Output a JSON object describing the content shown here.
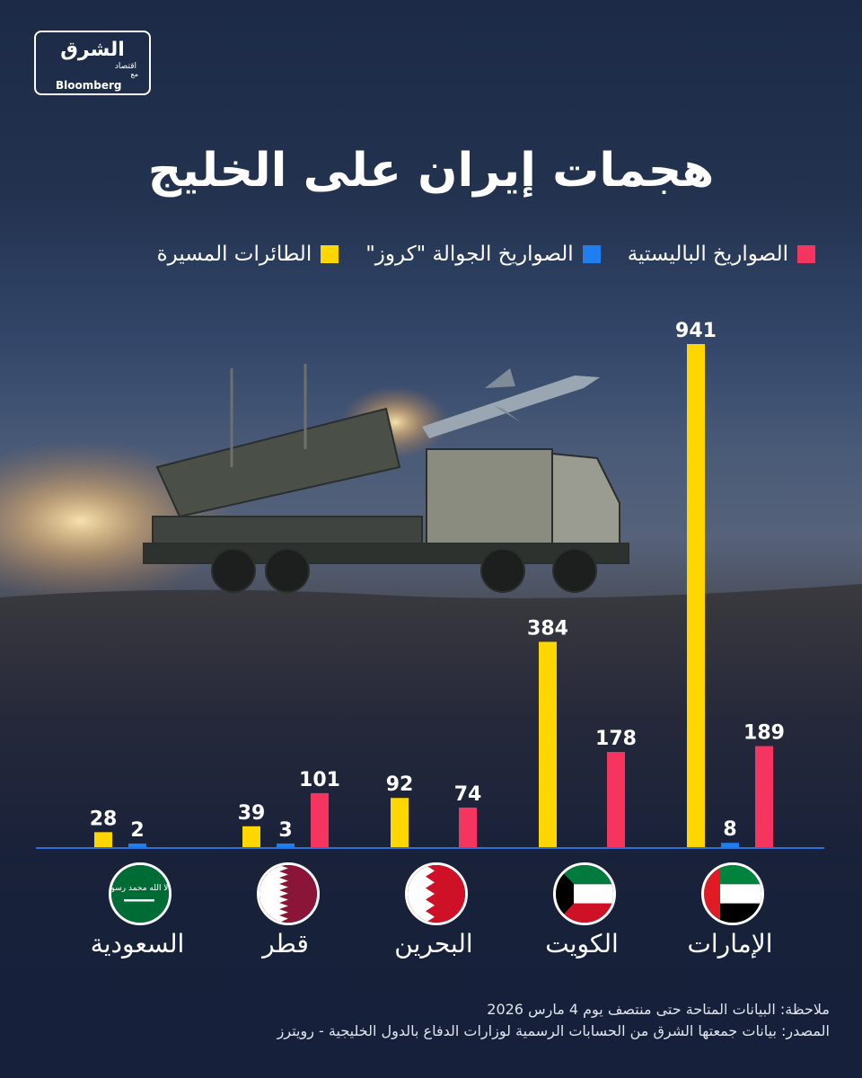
{
  "logo": {
    "brand": "الشرق",
    "sub": "اقتصاد",
    "with": "مع",
    "partner": "Bloomberg"
  },
  "title": "هجمات إيران على الخليج",
  "legend": [
    {
      "label": "الصواريخ الباليستية",
      "color": "#f5355f"
    },
    {
      "label": "الصواريخ الجوالة \"كروز\"",
      "color": "#1f7ef0"
    },
    {
      "label": "الطائرات المسيرة",
      "color": "#ffd600"
    }
  ],
  "chart_data": {
    "type": "bar",
    "categories": [
      "الإمارات",
      "الكويت",
      "البحرين",
      "قطر",
      "السعودية"
    ],
    "series": [
      {
        "name": "الطائرات المسيرة",
        "color": "#ffd600",
        "values": [
          941,
          384,
          92,
          39,
          28
        ]
      },
      {
        "name": "الصواريخ الجوالة \"كروز\"",
        "color": "#1f7ef0",
        "values": [
          8,
          null,
          null,
          3,
          2
        ]
      },
      {
        "name": "الصواريخ الباليستية",
        "color": "#f5355f",
        "values": [
          189,
          178,
          74,
          101,
          null
        ]
      }
    ],
    "ylim": [
      0,
      941
    ],
    "title": "هجمات إيران على الخليج"
  },
  "countries": [
    {
      "name": "الإمارات",
      "flag": "uae"
    },
    {
      "name": "الكويت",
      "flag": "kuwait"
    },
    {
      "name": "البحرين",
      "flag": "bahrain"
    },
    {
      "name": "قطر",
      "flag": "qatar"
    },
    {
      "name": "السعودية",
      "flag": "saudi"
    }
  ],
  "saudi_flag_text": "لا إله إلا الله محمد رسول الله",
  "notes": {
    "note": "ملاحظة: البيانات المتاحة حتى منتصف يوم 4 مارس 2026",
    "source": "المصدر: بيانات جمعتها الشرق من الحسابات الرسمية لوزارات الدفاع بالدول الخليجية - رويترز"
  }
}
